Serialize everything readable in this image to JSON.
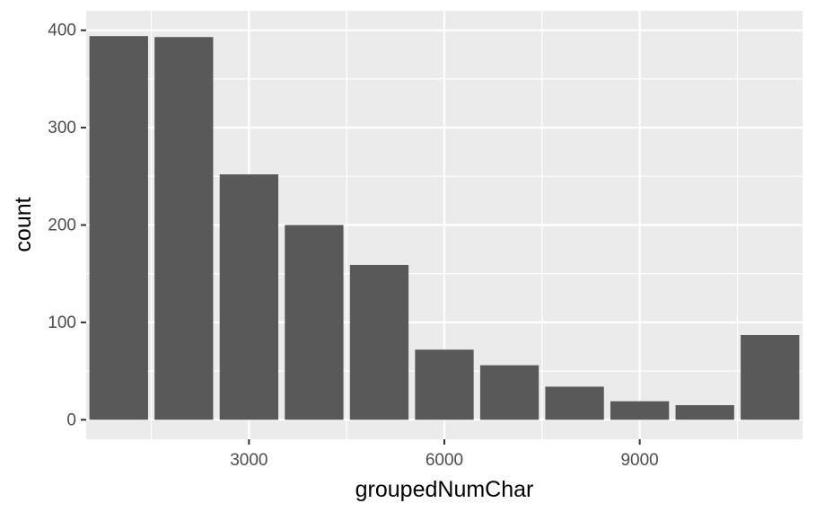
{
  "chart_data": {
    "type": "bar",
    "x": [
      1000,
      2000,
      3000,
      4000,
      5000,
      6000,
      7000,
      8000,
      9000,
      10000,
      11000
    ],
    "values": [
      394,
      393,
      252,
      200,
      159,
      72,
      56,
      34,
      19,
      15,
      87
    ],
    "xlabel": "groupedNumChar",
    "ylabel": "count",
    "xlim": [
      500,
      11500
    ],
    "ylim": [
      -20,
      420
    ],
    "xticks": [
      3000,
      6000,
      9000
    ],
    "xtick_labels": [
      "3000",
      "6000",
      "9000"
    ],
    "yticks": [
      0,
      100,
      200,
      300,
      400
    ],
    "ytick_labels": [
      "0",
      "100",
      "200",
      "300",
      "400"
    ],
    "grid": true,
    "legend": "none",
    "colors": {
      "bar": "#595959",
      "panel": "#ebebeb",
      "grid": "#ffffff"
    }
  }
}
